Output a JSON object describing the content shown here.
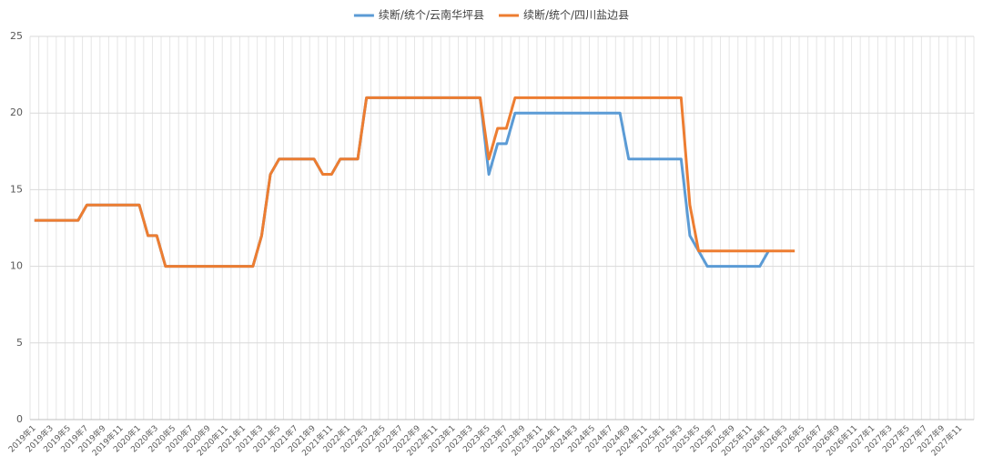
{
  "chart_data": {
    "type": "line",
    "categories": [
      "2019年1",
      null,
      "2019年3",
      null,
      "2019年5",
      null,
      "2019年7",
      null,
      "2019年9",
      null,
      "2019年11",
      null,
      "2020年1",
      null,
      "2020年3",
      null,
      "2020年5",
      null,
      "2020年7",
      null,
      "2020年9",
      null,
      "2020年11",
      null,
      "2021年1",
      null,
      "2021年3",
      null,
      "2021年5",
      null,
      "2021年7",
      null,
      "2021年9",
      null,
      "2021年11",
      null,
      "2022年1",
      null,
      "2022年3",
      null,
      "2022年5",
      null,
      "2022年7",
      null,
      "2022年9",
      null,
      "2022年11",
      null,
      "2023年1",
      null,
      "2023年3",
      null,
      "2023年5",
      null,
      "2023年7",
      null,
      "2023年9",
      null,
      "2023年11",
      null,
      "2024年1",
      null,
      "2024年3",
      null,
      "2024年5",
      null,
      "2024年7",
      null,
      "2024年9",
      null,
      "2024年11",
      null,
      "2025年1",
      null,
      "2025年3",
      null,
      "2025年5",
      null,
      "2025年7",
      null,
      "2025年9",
      null,
      "2025年11",
      null,
      "2026年1",
      null,
      "2026年3",
      null,
      "2026年5",
      null,
      "2026年7",
      null,
      "2026年9",
      null,
      "2026年11",
      null,
      "2027年1",
      null,
      "2027年3",
      null,
      "2027年5",
      null,
      "2027年7",
      null,
      "2027年9",
      null,
      "2027年11",
      null
    ],
    "series": [
      {
        "name": "续断/统个/云南华坪县",
        "color": "#5b9bd5",
        "values": [
          13,
          13,
          13,
          13,
          13,
          13,
          14,
          14,
          14,
          14,
          14,
          14,
          14,
          12,
          12,
          10,
          10,
          10,
          10,
          10,
          10,
          10,
          10,
          10,
          10,
          10,
          12,
          16,
          17,
          17,
          17,
          17,
          17,
          16,
          16,
          17,
          17,
          17,
          21,
          21,
          21,
          21,
          21,
          21,
          21,
          21,
          21,
          21,
          21,
          21,
          21,
          21,
          16,
          18,
          18,
          20,
          20,
          20,
          20,
          20,
          20,
          20,
          20,
          20,
          20,
          20,
          20,
          20,
          17,
          17,
          17,
          17,
          17,
          17,
          17,
          12,
          11,
          10,
          10,
          10,
          10,
          10,
          10,
          10,
          11,
          null,
          null,
          null,
          null,
          null,
          null,
          null,
          null,
          null,
          null,
          null,
          null,
          null,
          null,
          null,
          null,
          null,
          null,
          null,
          null,
          null,
          null,
          null
        ]
      },
      {
        "name": "续断/统个/四川盐边县",
        "color": "#ed7d31",
        "values": [
          13,
          13,
          13,
          13,
          13,
          13,
          14,
          14,
          14,
          14,
          14,
          14,
          14,
          12,
          12,
          10,
          10,
          10,
          10,
          10,
          10,
          10,
          10,
          10,
          10,
          10,
          12,
          16,
          17,
          17,
          17,
          17,
          17,
          16,
          16,
          17,
          17,
          17,
          21,
          21,
          21,
          21,
          21,
          21,
          21,
          21,
          21,
          21,
          21,
          21,
          21,
          21,
          17,
          19,
          19,
          21,
          21,
          21,
          21,
          21,
          21,
          21,
          21,
          21,
          21,
          21,
          21,
          21,
          21,
          21,
          21,
          21,
          21,
          21,
          21,
          14,
          11,
          11,
          11,
          11,
          11,
          11,
          11,
          11,
          11,
          11,
          11,
          11,
          null,
          null,
          null,
          null,
          null,
          null,
          null,
          null,
          null,
          null,
          null,
          null,
          null,
          null,
          null,
          null,
          null,
          null,
          null,
          null
        ]
      }
    ],
    "ylim": [
      0,
      25
    ],
    "yticks": [
      0,
      5,
      10,
      15,
      20,
      25
    ],
    "grid": true,
    "legend": "top"
  }
}
